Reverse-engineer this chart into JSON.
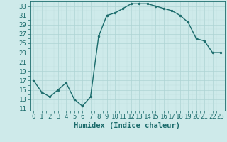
{
  "x": [
    0,
    1,
    2,
    3,
    4,
    5,
    6,
    7,
    8,
    9,
    10,
    11,
    12,
    13,
    14,
    15,
    16,
    17,
    18,
    19,
    20,
    21,
    22,
    23
  ],
  "y": [
    17,
    14.5,
    13.5,
    15,
    16.5,
    13,
    11.5,
    13.5,
    26.5,
    31,
    31.5,
    32.5,
    33.5,
    33.5,
    33.5,
    33,
    32.5,
    32,
    31,
    29.5,
    26,
    25.5,
    23,
    23
  ],
  "line_color": "#1a6b6b",
  "marker": "o",
  "marker_size": 2.0,
  "xlim": [
    -0.5,
    23.5
  ],
  "ylim": [
    10.5,
    34.0
  ],
  "yticks": [
    11,
    13,
    15,
    17,
    19,
    21,
    23,
    25,
    27,
    29,
    31,
    33
  ],
  "xticks": [
    0,
    1,
    2,
    3,
    4,
    5,
    6,
    7,
    8,
    9,
    10,
    11,
    12,
    13,
    14,
    15,
    16,
    17,
    18,
    19,
    20,
    21,
    22,
    23
  ],
  "bg_color": "#ceeaea",
  "grid_major_color": "#aed4d4",
  "grid_minor_color": "#bedddd",
  "font_color": "#1a6b6b",
  "xlabel": "Humidex (Indice chaleur)",
  "xlabel_fontsize": 7.5,
  "tick_fontsize": 6.5
}
